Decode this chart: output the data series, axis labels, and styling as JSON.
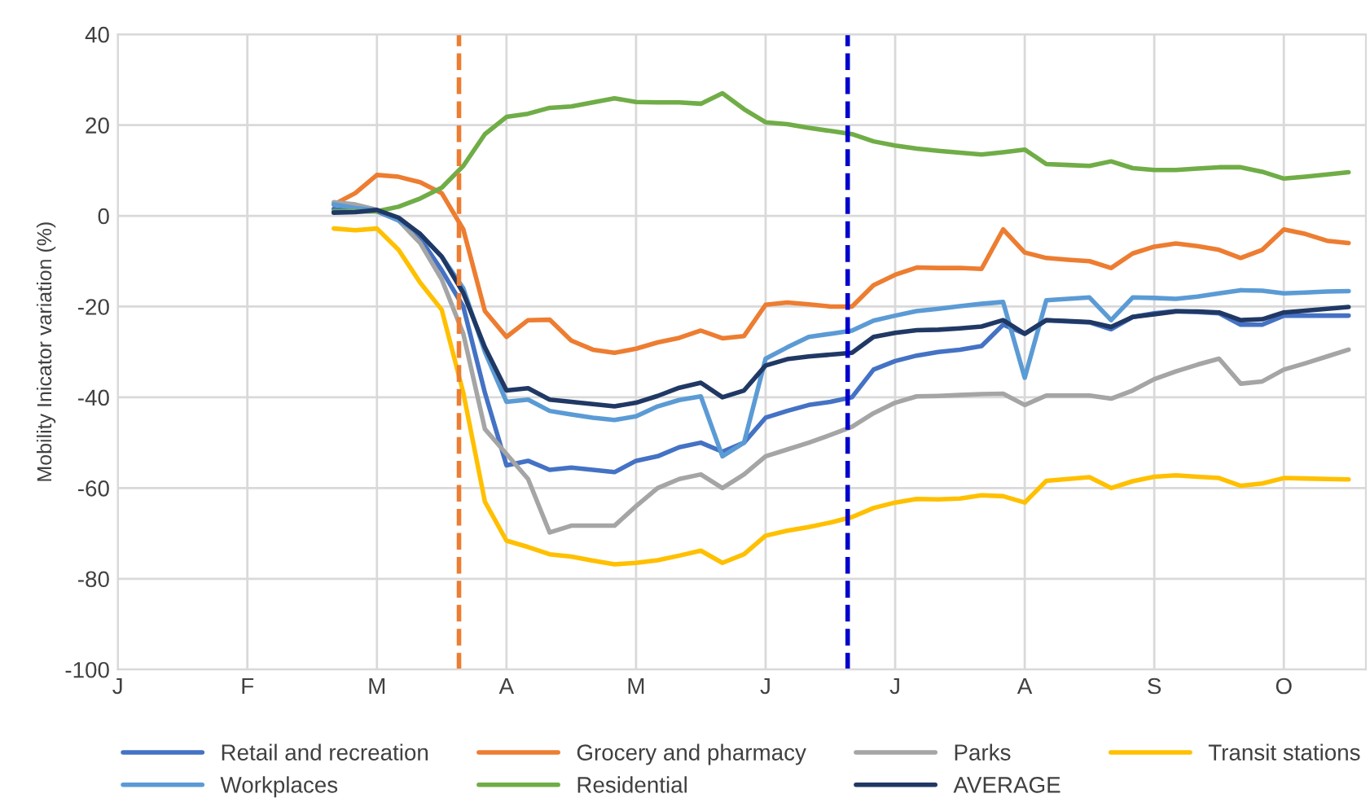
{
  "chart_data": {
    "type": "line",
    "ylabel": "Mobility Inicator variation (%)",
    "categories": [
      "J",
      null,
      null,
      null,
      null,
      null,
      "F",
      null,
      null,
      null,
      null,
      null,
      "M",
      null,
      null,
      null,
      null,
      null,
      "A",
      null,
      null,
      null,
      null,
      null,
      "M",
      null,
      null,
      null,
      null,
      null,
      "J",
      null,
      null,
      null,
      null,
      null,
      "J",
      null,
      null,
      null,
      null,
      null,
      "A",
      null,
      null,
      null,
      null,
      null,
      "S",
      null,
      null,
      null,
      null,
      null,
      "O",
      null,
      null,
      null
    ],
    "series": [
      {
        "name": "Retail and recreation",
        "color": "#4472c4",
        "values": [
          null,
          null,
          null,
          null,
          null,
          null,
          null,
          null,
          null,
          null,
          1.5,
          1,
          1,
          -1,
          -5,
          -12,
          -20,
          -39,
          -55,
          -54,
          -56,
          -55.5,
          -56,
          -56.5,
          -54,
          -53,
          -51,
          -50,
          -52,
          -50,
          -44.5,
          -43,
          -41.7,
          -41,
          -40,
          -33.9,
          -32,
          -30.8,
          -30,
          -29.5,
          -28.7,
          -24,
          -26,
          -23,
          -23.3,
          -23.5,
          -25,
          -22.3,
          -21.5,
          -21,
          -21.2,
          -21.5,
          -24,
          -24,
          -22,
          -22,
          -22,
          -22
        ]
      },
      {
        "name": "Grocery and pharmacy",
        "color": "#ed7d31",
        "values": [
          null,
          null,
          null,
          null,
          null,
          null,
          null,
          null,
          null,
          null,
          2.5,
          5,
          9,
          8.6,
          7.4,
          5,
          -3,
          -21,
          -26.7,
          -23,
          -22.9,
          -27.5,
          -29.5,
          -30.2,
          -29.3,
          -27.9,
          -26.9,
          -25.3,
          -27,
          -26.5,
          -19.6,
          -19.1,
          -19.5,
          -20,
          -20,
          -15.3,
          -13,
          -11.4,
          -11.5,
          -11.5,
          -11.7,
          -3,
          -8.1,
          -9.3,
          -9.7,
          -10,
          -11.5,
          -8.3,
          -6.8,
          -6.1,
          -6.7,
          -7.5,
          -9.3,
          -7.5,
          -3,
          -4,
          -5.5,
          -6
        ]
      },
      {
        "name": "Parks",
        "color": "#a5a5a5",
        "values": [
          null,
          null,
          null,
          null,
          null,
          null,
          null,
          null,
          null,
          null,
          3,
          2.5,
          1.3,
          -1,
          -6,
          -14,
          -26,
          -47,
          -52.5,
          -58,
          -69.8,
          -68.3,
          -68.3,
          -68.3,
          -64,
          -60,
          -58,
          -57,
          -60,
          -57,
          -53,
          -51.5,
          -50,
          -48.3,
          -46.5,
          -43.5,
          -41.2,
          -39.8,
          -39.7,
          -39.5,
          -39.3,
          -39.2,
          -41.7,
          -39.6,
          -39.6,
          -39.6,
          -40.3,
          -38.5,
          -36,
          -34.3,
          -32.8,
          -31.5,
          -37,
          -36.5,
          -33.9,
          -32.5,
          -31,
          -29.5
        ]
      },
      {
        "name": "Transit stations",
        "color": "#ffc000",
        "values": [
          null,
          null,
          null,
          null,
          null,
          null,
          null,
          null,
          null,
          null,
          -2.8,
          -3.2,
          -2.8,
          -7.5,
          -14.7,
          -20.7,
          -39,
          -63,
          -71.6,
          -73,
          -74.6,
          -75.1,
          -76,
          -76.8,
          -76.5,
          -75.9,
          -74.9,
          -73.8,
          -76.5,
          -74.6,
          -70.5,
          -69.4,
          -68.6,
          -67.6,
          -66.4,
          -64.4,
          -63.2,
          -62.4,
          -62.5,
          -62.3,
          -61.6,
          -61.8,
          -63.2,
          -58.4,
          -58,
          -57.6,
          -60,
          -58.5,
          -57.5,
          -57.2,
          -57.5,
          -57.8,
          -59.5,
          -59,
          -57.8,
          -57.9,
          -58,
          -58.1
        ]
      },
      {
        "name": "Workplaces",
        "color": "#5b9bd5",
        "values": [
          null,
          null,
          null,
          null,
          null,
          null,
          null,
          null,
          null,
          null,
          2.5,
          1.7,
          1.2,
          -1,
          -4,
          -9,
          -16,
          -30,
          -41,
          -40.5,
          -43,
          -43.8,
          -44.5,
          -45,
          -44.2,
          -42,
          -40.6,
          -39.8,
          -53,
          -50,
          -31.5,
          -29,
          -26.7,
          -26,
          -25.3,
          -23.1,
          -22,
          -21,
          -20.5,
          -19.9,
          -19.4,
          -19,
          -35.7,
          -18.6,
          -18.3,
          -18,
          -23,
          -18,
          -18.1,
          -18.3,
          -17.8,
          -17.1,
          -16.4,
          -16.5,
          -17.1,
          -16.9,
          -16.7,
          -16.6
        ]
      },
      {
        "name": "Residential",
        "color": "#70ad47",
        "values": [
          null,
          null,
          null,
          null,
          null,
          null,
          null,
          null,
          null,
          null,
          1,
          1,
          1,
          2,
          3.8,
          6.2,
          11,
          18,
          21.8,
          22.5,
          23.8,
          24.1,
          25,
          25.9,
          25.1,
          25,
          25,
          24.7,
          27,
          23.5,
          20.6,
          20.2,
          19.4,
          18.7,
          18,
          16.4,
          15.5,
          14.8,
          14.3,
          13.9,
          13.5,
          14,
          14.6,
          11.4,
          11.2,
          11,
          12,
          10.5,
          10.1,
          10.1,
          10.4,
          10.7,
          10.7,
          9.7,
          8.2,
          8.6,
          9.1,
          9.6
        ]
      },
      {
        "name": "AVERAGE",
        "color": "#203864",
        "values": [
          null,
          null,
          null,
          null,
          null,
          null,
          null,
          null,
          null,
          null,
          0.7,
          0.8,
          1.3,
          -0.4,
          -4,
          -9,
          -17,
          -29,
          -38.5,
          -38,
          -40.5,
          -41,
          -41.5,
          -42,
          -41.2,
          -39.7,
          -37.9,
          -36.8,
          -40,
          -38.5,
          -33,
          -31.6,
          -31,
          -30.6,
          -30.2,
          -26.7,
          -25.8,
          -25.2,
          -25.1,
          -24.8,
          -24.4,
          -23,
          -26,
          -23,
          -23.2,
          -23.4,
          -24.5,
          -22.3,
          -21.7,
          -21.1,
          -21.1,
          -21.3,
          -23,
          -22.8,
          -21.3,
          -20.9,
          -20.5,
          -20.1
        ]
      }
    ],
    "ylim": [
      -100,
      40
    ],
    "yticks": [
      -100,
      -80,
      -60,
      -40,
      -20,
      0,
      20,
      40
    ],
    "grid": true,
    "legend": "bottom",
    "line_style": "solid",
    "marker": "none"
  }
}
